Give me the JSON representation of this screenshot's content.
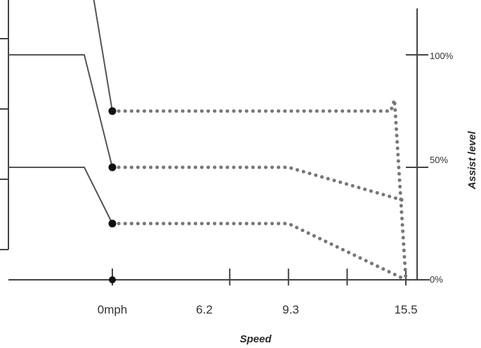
{
  "chart_data": {
    "type": "line",
    "xlabel": "Speed",
    "ylabel": "Assist level",
    "x_tick_labels": [
      "0mph",
      "6.2",
      "9.3",
      "15.5"
    ],
    "x_ticks": [
      0,
      6.2,
      9.3,
      12.4,
      15.5
    ],
    "y_tick_labels": [
      "100%",
      "50%",
      "0%"
    ],
    "y_ticks": [
      100,
      50,
      0
    ],
    "xlim": [
      0,
      15.5
    ],
    "ylim": [
      0,
      100
    ],
    "pre_zero_levels": [
      150,
      100,
      50
    ],
    "series": [
      {
        "points": [
          [
            0,
            75
          ],
          [
            14.7,
            75
          ],
          [
            14.9,
            80
          ],
          [
            15.5,
            0
          ]
        ]
      },
      {
        "points": [
          [
            0,
            50
          ],
          [
            9.3,
            50
          ],
          [
            15.5,
            35
          ]
        ]
      },
      {
        "points": [
          [
            0,
            25
          ],
          [
            9.3,
            25
          ],
          [
            15.5,
            0
          ]
        ]
      }
    ],
    "colors": {
      "line": "#555555",
      "dots": "#777777",
      "marker": "#111111",
      "axis": "#444444"
    }
  }
}
